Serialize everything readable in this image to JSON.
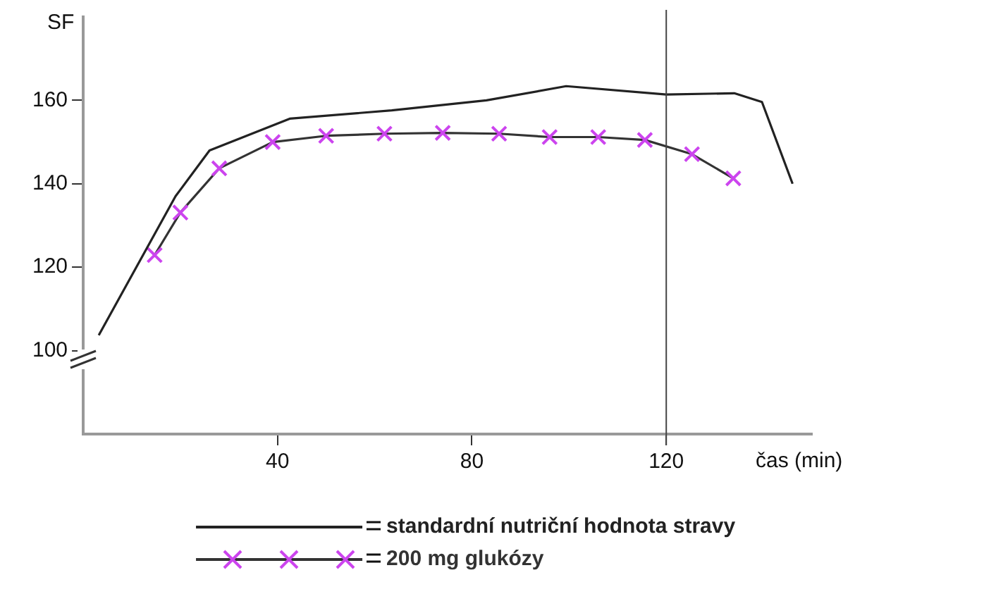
{
  "chart_data": {
    "type": "line",
    "xlabel": "čas (min)",
    "ylabel": "SF",
    "xlim": [
      0,
      150
    ],
    "xticks": [
      40,
      80,
      120
    ],
    "ylim": [
      80,
      180
    ],
    "yticks": [
      100,
      120,
      140,
      160
    ],
    "grid": false,
    "legend": "bottom",
    "ref_lines": [
      {
        "axis": "x",
        "value": 120,
        "color": "#444444"
      }
    ],
    "series": [
      {
        "name": "standardní nutriční hodnota stravy",
        "color": "#222222",
        "marker": "none",
        "x": [
          3.2,
          19,
          26,
          42.5,
          63.5,
          83,
          99.4,
          120,
          134,
          139.7,
          146
        ],
        "values": [
          103.7,
          137,
          148,
          155.6,
          157.6,
          160,
          163.4,
          161.4,
          161.7,
          159.6,
          140
        ]
      },
      {
        "name": "200 mg glukózy",
        "color": "#333333",
        "colors": [
          "#cc44ee",
          "#cc44ee",
          "#cc44ee",
          "#cc44ee",
          "#cc44ee",
          "#cc44ee",
          "#cc44ee",
          "#cc44ee",
          "#cc44ee",
          "#cc44ee",
          "#cc44ee",
          "#cc44ee",
          "#cc44ee"
        ],
        "marker": "cross",
        "x": [
          14.7,
          20,
          28,
          39,
          50,
          62,
          74,
          85.6,
          96,
          106,
          115.6,
          125.3,
          133.8
        ],
        "values": [
          122.9,
          133.1,
          143.7,
          150,
          151.5,
          152,
          152.2,
          152,
          151.2,
          151.2,
          150.5,
          147.1,
          141.3
        ]
      }
    ]
  }
}
